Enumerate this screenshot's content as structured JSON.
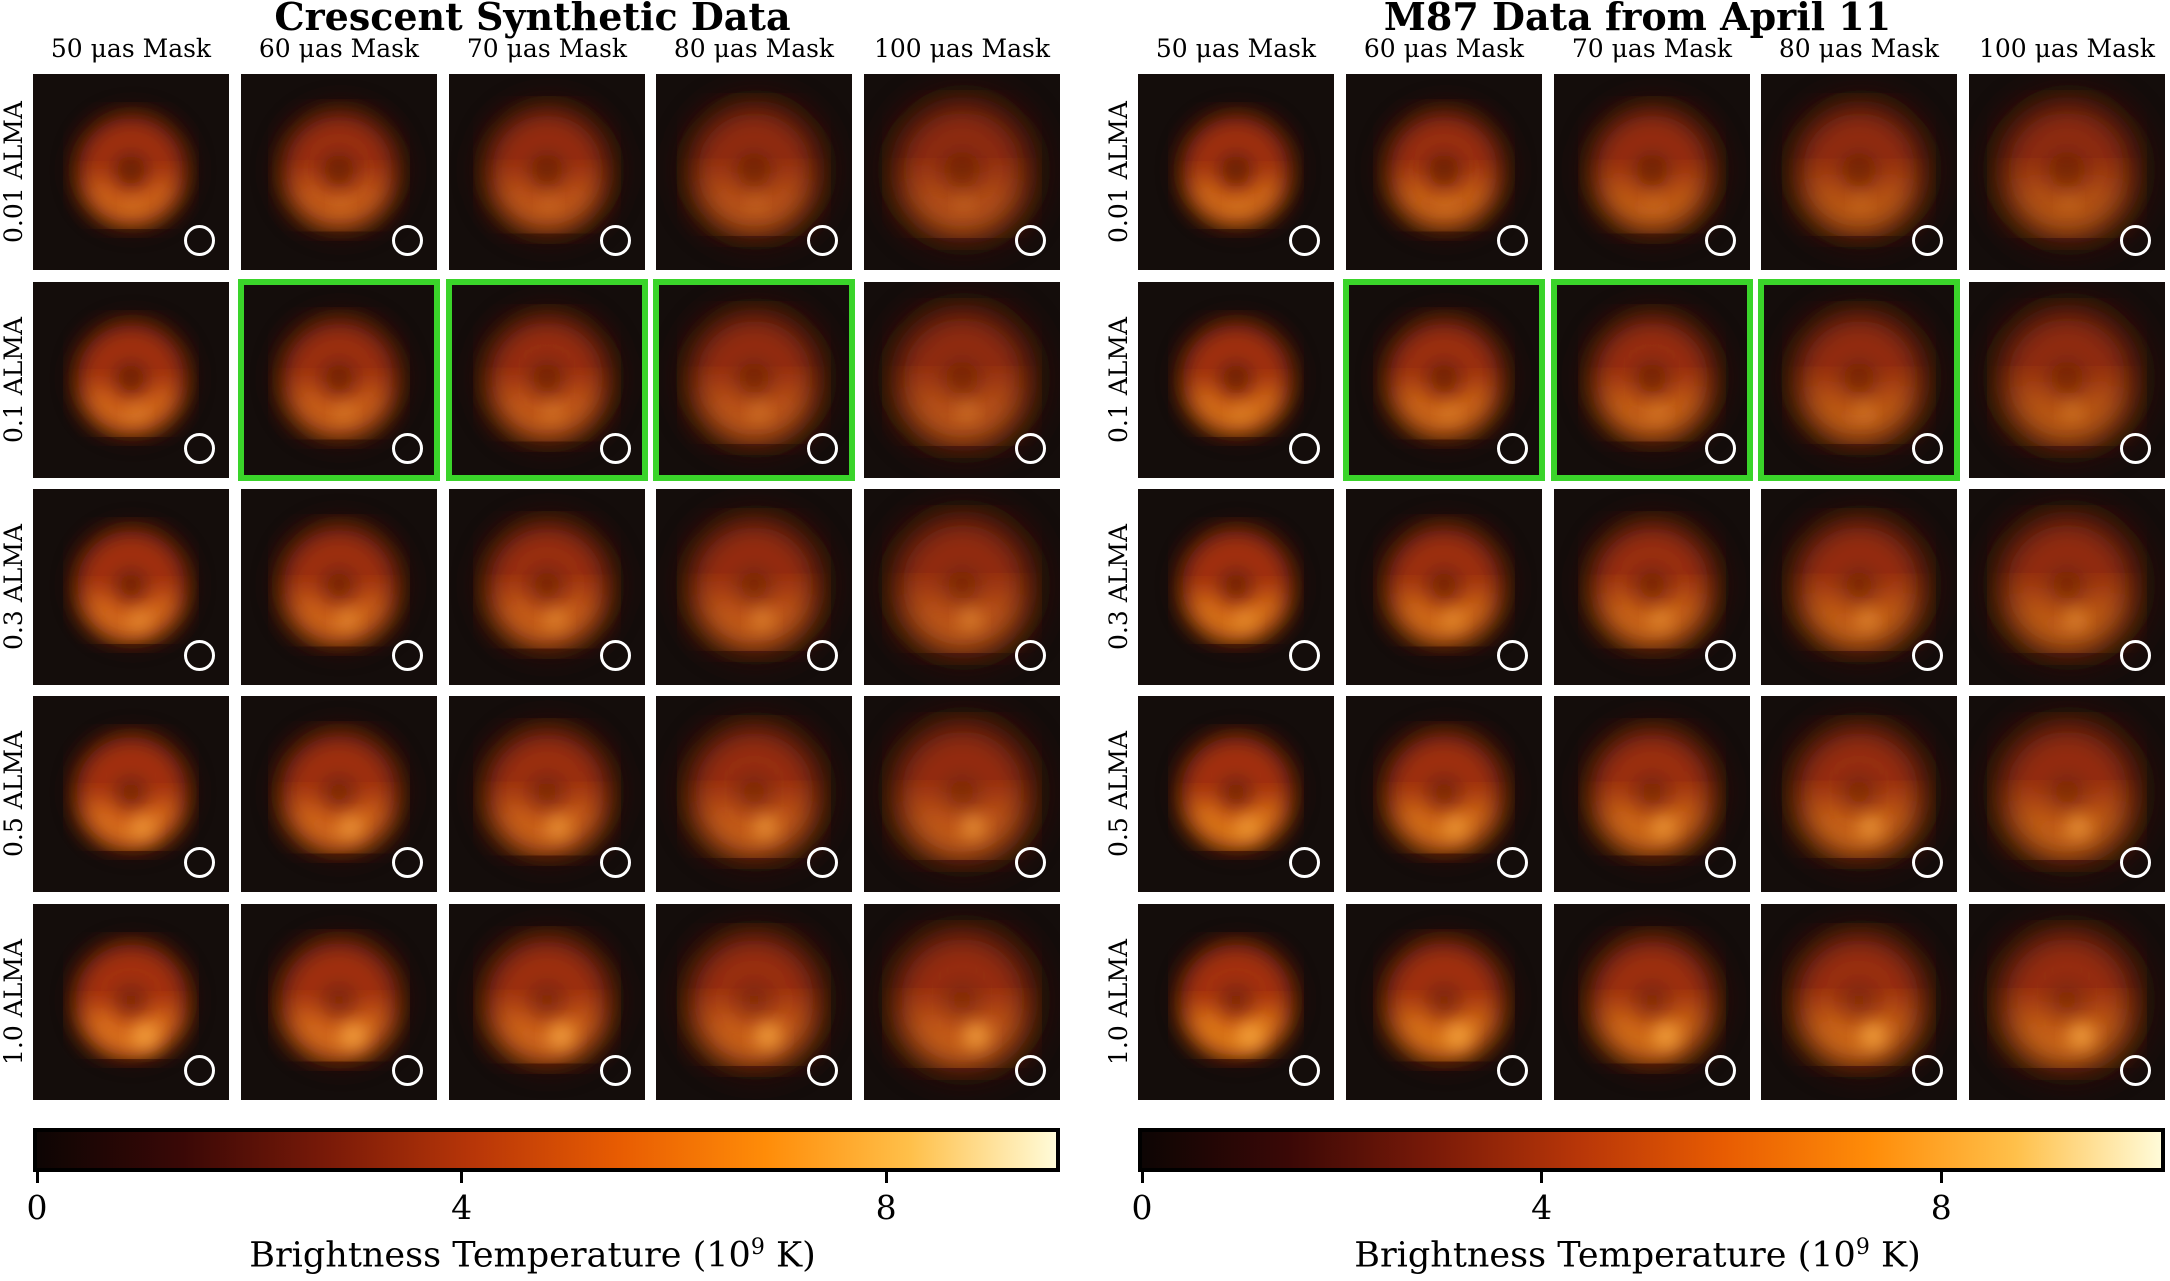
{
  "colorbar_stops": [
    "#0d0504",
    "#3a0806",
    "#7a1a08",
    "#b83608",
    "#e85c02",
    "#ff8c08",
    "#ffc04a",
    "#fffbd8"
  ],
  "highlight_color": "#3ad42a",
  "panels": [
    {
      "title": "Crescent Synthetic Data",
      "columns": [
        "50 μas Mask",
        "60 μas Mask",
        "70 μas Mask",
        "80 μas Mask",
        "100 μas Mask"
      ],
      "rows": [
        "0.01 ALMA",
        "0.1 ALMA",
        "0.3 ALMA",
        "0.5 ALMA",
        "1.0 ALMA"
      ],
      "highlighted": [
        [
          1,
          1
        ],
        [
          1,
          2
        ],
        [
          1,
          3
        ]
      ],
      "colorbar": {
        "ticks": [
          "0",
          "4",
          "8"
        ],
        "vmax": 9.6,
        "label_pre": "Brightness Temperature (10",
        "label_sup": "9",
        "label_post": " K)"
      }
    },
    {
      "title": "M87 Data from April 11",
      "columns": [
        "50 μas Mask",
        "60 μas Mask",
        "70 μas Mask",
        "80 μas Mask",
        "100 μas Mask"
      ],
      "rows": [
        "0.01 ALMA",
        "0.1 ALMA",
        "0.3 ALMA",
        "0.5 ALMA",
        "1.0 ALMA"
      ],
      "highlighted": [
        [
          1,
          1
        ],
        [
          1,
          2
        ],
        [
          1,
          3
        ]
      ],
      "colorbar": {
        "ticks": [
          "0",
          "4",
          "8"
        ],
        "vmax": 10.2,
        "label_pre": "Brightness Temperature (10",
        "label_sup": "9",
        "label_post": " K)"
      }
    }
  ]
}
